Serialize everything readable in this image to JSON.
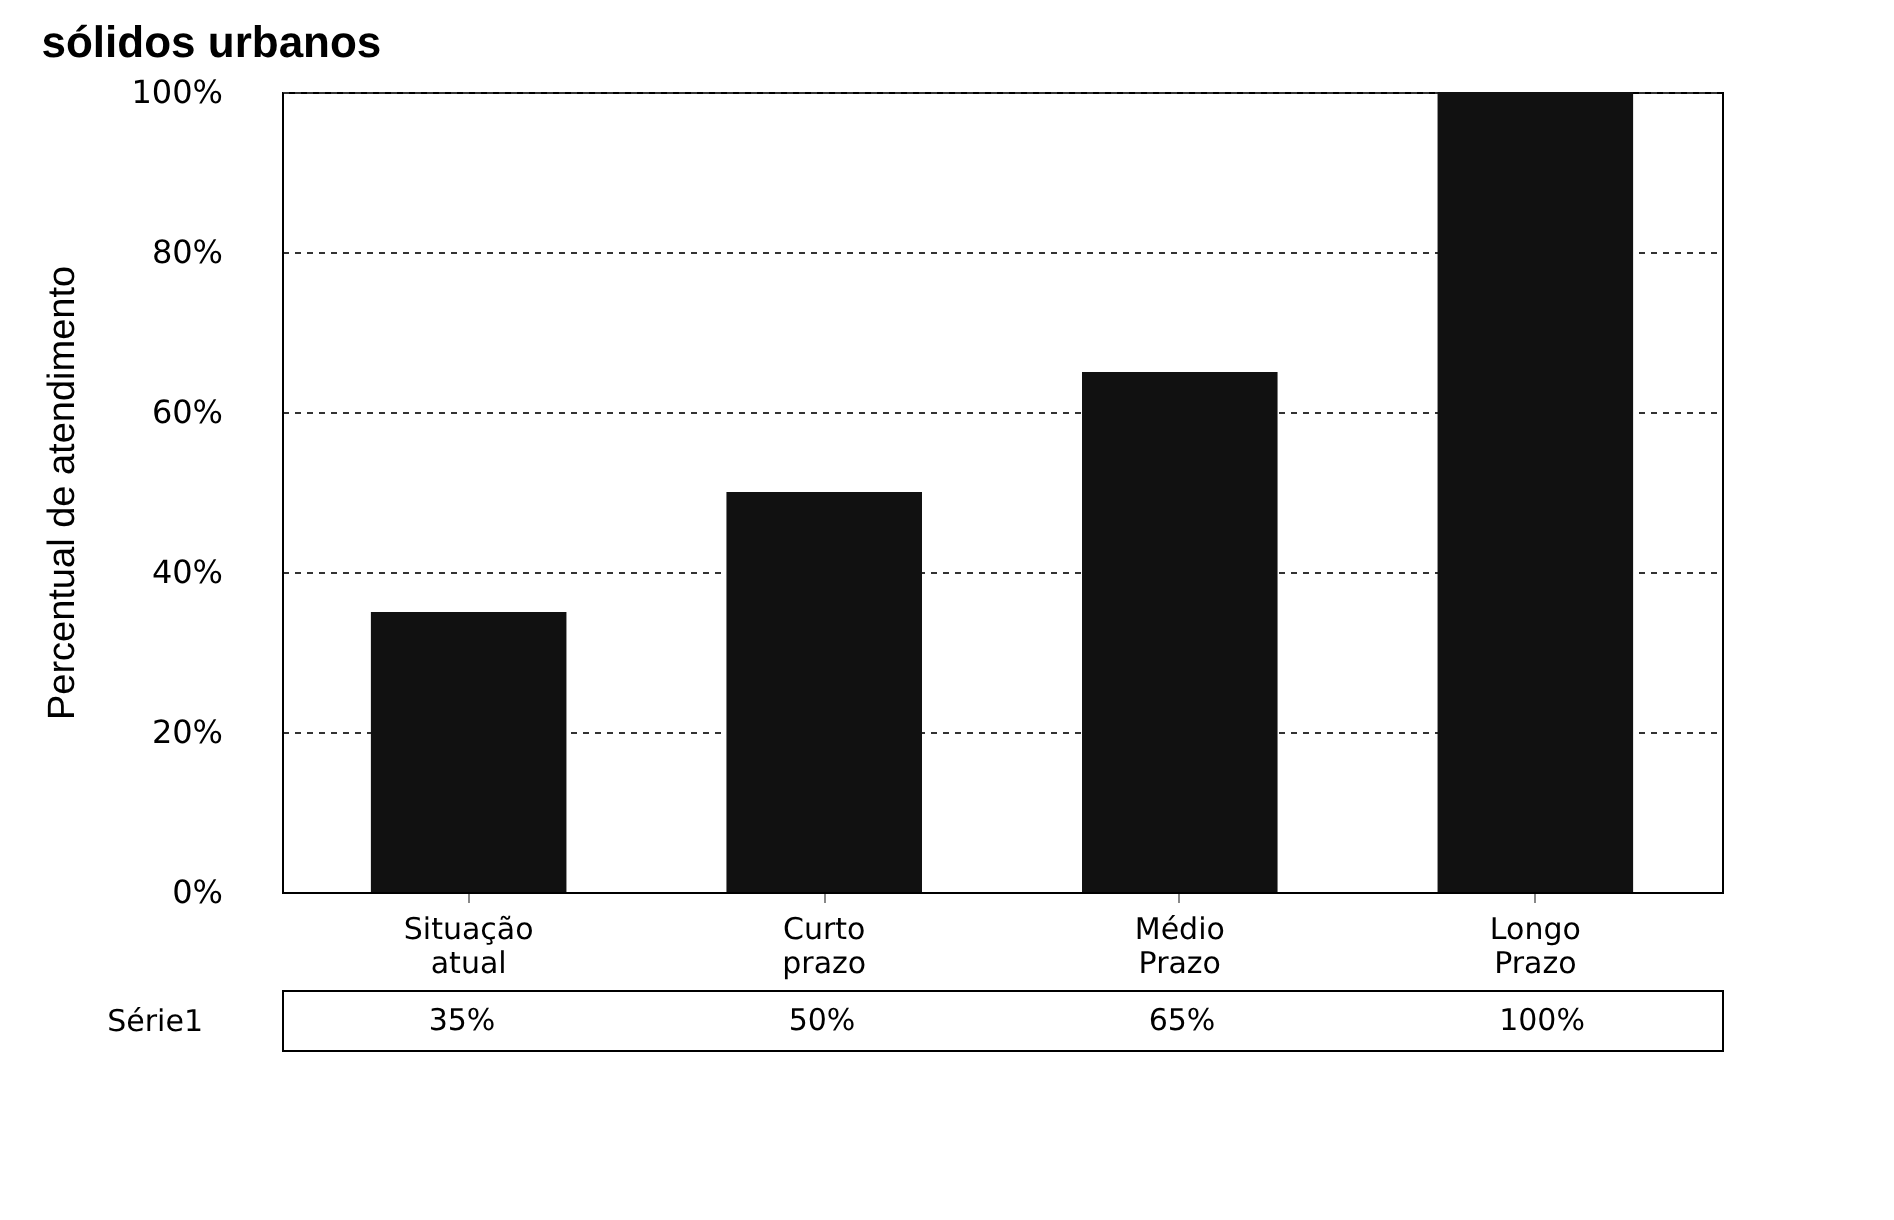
{
  "chart_data": {
    "type": "bar",
    "title": "sólidos urbanos",
    "ylabel": "Percentual de atendimento",
    "categories": [
      "Situação atual",
      "Curto prazo",
      "Médio Prazo",
      "Longo Prazo"
    ],
    "series": [
      {
        "name": "Série1",
        "color": "#111111",
        "values": [
          35,
          50,
          65,
          100
        ],
        "value_labels": [
          "35%",
          "50%",
          "65%",
          "100%"
        ]
      }
    ],
    "ylim": [
      0,
      100
    ],
    "yticks": [
      {
        "value": 0,
        "label": "0%"
      },
      {
        "value": 20,
        "label": "20%"
      },
      {
        "value": 40,
        "label": "40%"
      },
      {
        "value": 60,
        "label": "60%"
      },
      {
        "value": 80,
        "label": "80%"
      },
      {
        "value": 100,
        "label": "100%"
      }
    ],
    "grid": "y"
  }
}
